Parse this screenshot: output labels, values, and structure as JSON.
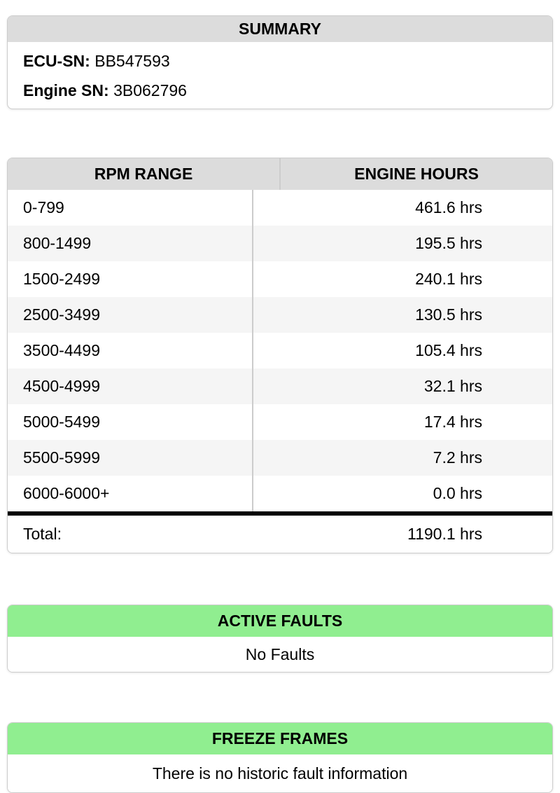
{
  "summary": {
    "title": "SUMMARY",
    "fields": [
      {
        "label": "ECU-SN:",
        "value": "BB547593"
      },
      {
        "label": "Engine SN:",
        "value": "3B062796"
      }
    ]
  },
  "rpm_table": {
    "columns": [
      "RPM RANGE",
      "ENGINE HOURS"
    ],
    "rows": [
      {
        "range": "0-799",
        "hours": "461.6 hrs"
      },
      {
        "range": "800-1499",
        "hours": "195.5 hrs"
      },
      {
        "range": "1500-2499",
        "hours": "240.1 hrs"
      },
      {
        "range": "2500-3499",
        "hours": "130.5 hrs"
      },
      {
        "range": "3500-4499",
        "hours": "105.4 hrs"
      },
      {
        "range": "4500-4999",
        "hours": "32.1 hrs"
      },
      {
        "range": "5000-5499",
        "hours": "17.4 hrs"
      },
      {
        "range": "5500-5999",
        "hours": "7.2 hrs"
      },
      {
        "range": "6000-6000+",
        "hours": "0.0 hrs"
      }
    ],
    "total_label": "Total:",
    "total_value": "1190.1 hrs"
  },
  "active_faults": {
    "title": "ACTIVE FAULTS",
    "message": "No Faults"
  },
  "freeze_frames": {
    "title": "FREEZE FRAMES",
    "message": "There is no historic fault information"
  },
  "colors": {
    "header_gray": "#dcdcdc",
    "alt_row_gray": "#f5f5f5",
    "header_green": "#90ee90",
    "card_border": "#cccccc",
    "total_rule_black": "#000000"
  }
}
